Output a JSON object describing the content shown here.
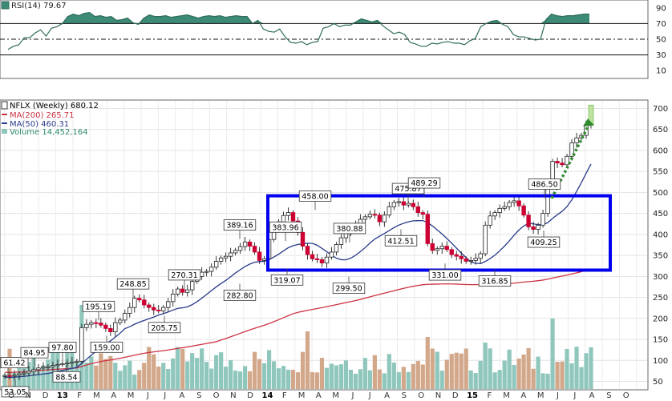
{
  "chart_data": [
    {
      "type": "line",
      "panel": "rsi",
      "title": "RSI(14) 79.67",
      "ylim": [
        0,
        100
      ],
      "yticks": [
        10,
        30,
        50,
        70,
        90
      ],
      "reference_lines": [
        30,
        50,
        70
      ],
      "fill_above": 70,
      "colors": {
        "line": "#2e6b5a",
        "fill": "#3d8a76"
      },
      "series": [
        {
          "values": [
            37,
            41,
            43,
            52,
            52,
            58,
            62,
            54,
            64,
            66,
            70,
            79,
            82,
            80,
            83,
            84,
            79,
            80,
            78,
            79,
            74,
            75,
            77,
            71,
            69,
            77,
            81,
            79,
            79,
            80,
            78,
            79,
            80,
            81,
            79,
            77,
            79,
            80,
            79,
            80,
            78,
            79,
            80,
            79,
            79,
            70,
            74,
            63,
            60,
            59,
            63,
            53,
            46,
            45,
            47,
            43,
            46,
            47,
            64,
            66,
            70,
            66,
            68,
            68,
            72,
            76,
            74,
            72,
            74,
            67,
            62,
            57,
            59,
            56,
            46,
            44,
            41,
            41,
            45,
            44,
            46,
            47,
            45,
            45,
            43,
            48,
            51,
            66,
            70,
            73,
            74,
            69,
            66,
            56,
            53,
            53,
            51,
            49,
            50,
            75,
            82,
            80,
            79,
            80,
            80,
            81,
            82,
            82
          ]
        }
      ]
    },
    {
      "type": "bar",
      "panel": "price",
      "title": "NFLX (Weekly) 680.12",
      "ylim": [
        30,
        720
      ],
      "yticks": [
        50,
        100,
        150,
        200,
        250,
        300,
        350,
        400,
        450,
        500,
        550,
        600,
        650,
        700
      ],
      "colors": {
        "up": "#ffffff",
        "down": "#cc0033",
        "ma200": "#cc3344",
        "ma50": "#2a3a8a",
        "vol_up": "#8fc7bc",
        "vol_down": "#d2a78a",
        "box": "#0000ee",
        "trend": "#2e8b2e"
      },
      "legend": [
        {
          "name": "MA(200) 265.71",
          "color": "#cc3344"
        },
        {
          "name": "MA(50) 460.31",
          "color": "#2a3a8a"
        },
        {
          "name": "Volume 14,452,164",
          "color": "#2a8a6a"
        }
      ],
      "x_months": [
        "S",
        "O",
        "N",
        "D",
        "13",
        "F",
        "M",
        "A",
        "M",
        "J",
        "J",
        "A",
        "S",
        "O",
        "N",
        "D",
        "14",
        "F",
        "M",
        "A",
        "M",
        "J",
        "J",
        "A",
        "S",
        "O",
        "N",
        "D",
        "15",
        "F",
        "M",
        "A",
        "M",
        "J",
        "J",
        "A",
        "S",
        "O"
      ],
      "year_labels": [
        "13",
        "14",
        "15"
      ],
      "annotations": [
        "61.42",
        "84.95",
        "97.80",
        "53.05",
        "88.54",
        "195.19",
        "159.00",
        "248.85",
        "205.75",
        "270.31",
        "389.16",
        "282.80",
        "383.96",
        "319.07",
        "458.00",
        "380.88",
        "299.50",
        "475.87",
        "412.51",
        "489.29",
        "331.00",
        "316.85",
        "486.50",
        "409.25"
      ],
      "annotation_values": [
        61.42,
        84.95,
        97.8,
        53.05,
        88.54,
        195.19,
        159.0,
        248.85,
        205.75,
        270.31,
        389.16,
        282.8,
        383.96,
        319.07,
        458.0,
        380.88,
        299.5,
        475.87,
        412.51,
        489.29,
        331.0,
        316.85,
        486.5,
        409.25
      ],
      "closes": [
        64,
        63,
        65,
        68,
        70,
        74,
        78,
        82,
        84,
        85,
        88,
        90,
        92,
        94,
        96,
        98,
        178,
        186,
        190,
        189,
        184,
        176,
        168,
        190,
        196,
        212,
        226,
        248,
        244,
        232,
        226,
        220,
        218,
        226,
        240,
        258,
        270,
        262,
        268,
        288,
        300,
        310,
        312,
        322,
        336,
        344,
        348,
        356,
        362,
        371,
        382,
        372,
        358,
        338,
        342,
        388,
        412,
        430,
        445,
        452,
        432,
        405,
        372,
        352,
        342,
        340,
        332,
        346,
        358,
        376,
        392,
        402,
        414,
        424,
        436,
        442,
        448,
        446,
        430,
        446,
        466,
        476,
        478,
        470,
        474,
        466,
        452,
        448,
        378,
        362,
        366,
        372,
        364,
        352,
        348,
        342,
        336,
        338,
        343,
        354,
        422,
        444,
        452,
        462,
        466,
        476,
        480,
        468,
        446,
        418,
        412,
        422,
        450,
        516,
        574,
        570,
        566,
        586,
        618,
        630,
        636,
        662,
        680
      ]
    }
  ]
}
